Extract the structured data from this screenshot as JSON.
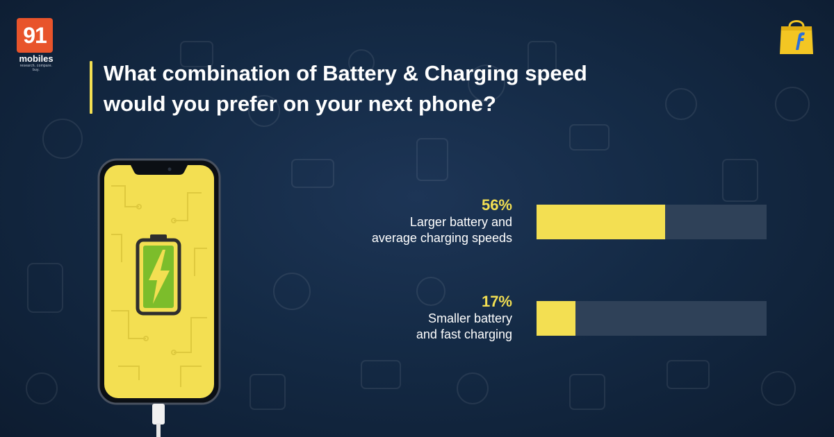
{
  "brand": {
    "logo_number": "91",
    "logo_word": "mobiles",
    "logo_tagline": "research. compare. buy.",
    "accent_color": "#f3df52",
    "logo_color": "#e8542b",
    "partner_icon": "flipkart-bag-icon"
  },
  "header": {
    "title_line1": "What combination of Battery & Charging speed",
    "title_line2": "would you prefer on your next phone?"
  },
  "chart_data": {
    "type": "bar",
    "orientation": "horizontal",
    "unit": "%",
    "xlim": [
      0,
      100
    ],
    "grid": false,
    "series": [
      {
        "values": [
          56,
          17
        ]
      }
    ],
    "categories": [
      "Larger battery and average charging speeds",
      "Smaller battery and fast charging"
    ],
    "bars": [
      {
        "pct_label": "56%",
        "value": 56,
        "label_line1": "Larger battery and",
        "label_line2": "average charging speeds"
      },
      {
        "pct_label": "17%",
        "value": 17,
        "label_line1": "Smaller battery",
        "label_line2": "and fast charging"
      }
    ],
    "colors": {
      "fill": "#f3df52",
      "track": "#2f4158"
    }
  },
  "illustration": {
    "icon": "smartphone-battery-charging-icon",
    "screen_color": "#f3df52",
    "battery_color": "#7cbd2b"
  }
}
